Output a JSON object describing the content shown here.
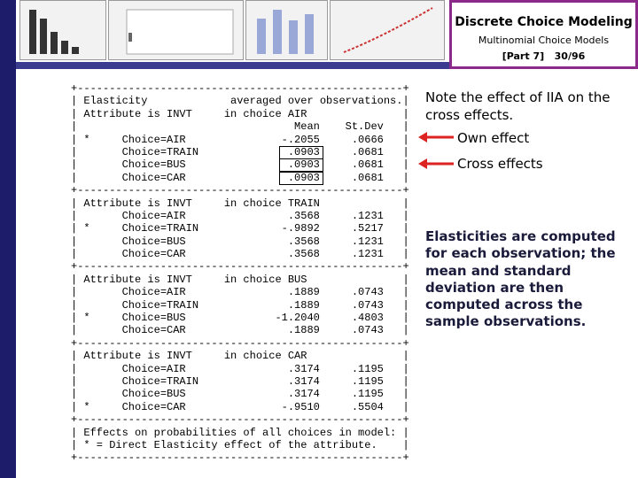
{
  "header": {
    "title": "Discrete Choice Modeling",
    "subtitle": "Multinomial Choice Models",
    "part": "[Part 7]",
    "page": "30/96"
  },
  "output": {
    "lines": [
      "+---------------------------------------------------+",
      "| Elasticity             averaged over observations.|",
      "| Attribute is INVT     in choice AIR               |",
      "|                                  Mean    St.Dev   |",
      "| *     Choice=AIR               -.2055     .0666   |",
      "|       Choice=TRAIN              .0903     .0681   |",
      "|       Choice=BUS                .0903     .0681   |",
      "|       Choice=CAR                .0903     .0681   |",
      "+---------------------------------------------------+",
      "| Attribute is INVT     in choice TRAIN             |",
      "|       Choice=AIR                .3568     .1231   |",
      "| *     Choice=TRAIN             -.9892     .5217   |",
      "|       Choice=BUS                .3568     .1231   |",
      "|       Choice=CAR                .3568     .1231   |",
      "+---------------------------------------------------+",
      "| Attribute is INVT     in choice BUS               |",
      "|       Choice=AIR                .1889     .0743   |",
      "|       Choice=TRAIN              .1889     .0743   |",
      "| *     Choice=BUS              -1.2040     .4803   |",
      "|       Choice=CAR                .1889     .0743   |",
      "+---------------------------------------------------+",
      "| Attribute is INVT     in choice CAR               |",
      "|       Choice=AIR                .3174     .1195   |",
      "|       Choice=TRAIN              .3174     .1195   |",
      "|       Choice=BUS                .3174     .1195   |",
      "| *     Choice=CAR               -.9510     .5504   |",
      "+---------------------------------------------------+",
      "| Effects on probabilities of all choices in model: |",
      "| * = Direct Elasticity effect of the attribute.    |",
      "+---------------------------------------------------+"
    ]
  },
  "notes": {
    "iia": "Note the effect of IIA on the cross effects.",
    "own": "Own effect",
    "cross": "Cross effects",
    "explanation": "Elasticities are computed for each observation; the mean and standard deviation are then computed across the sample observations."
  }
}
